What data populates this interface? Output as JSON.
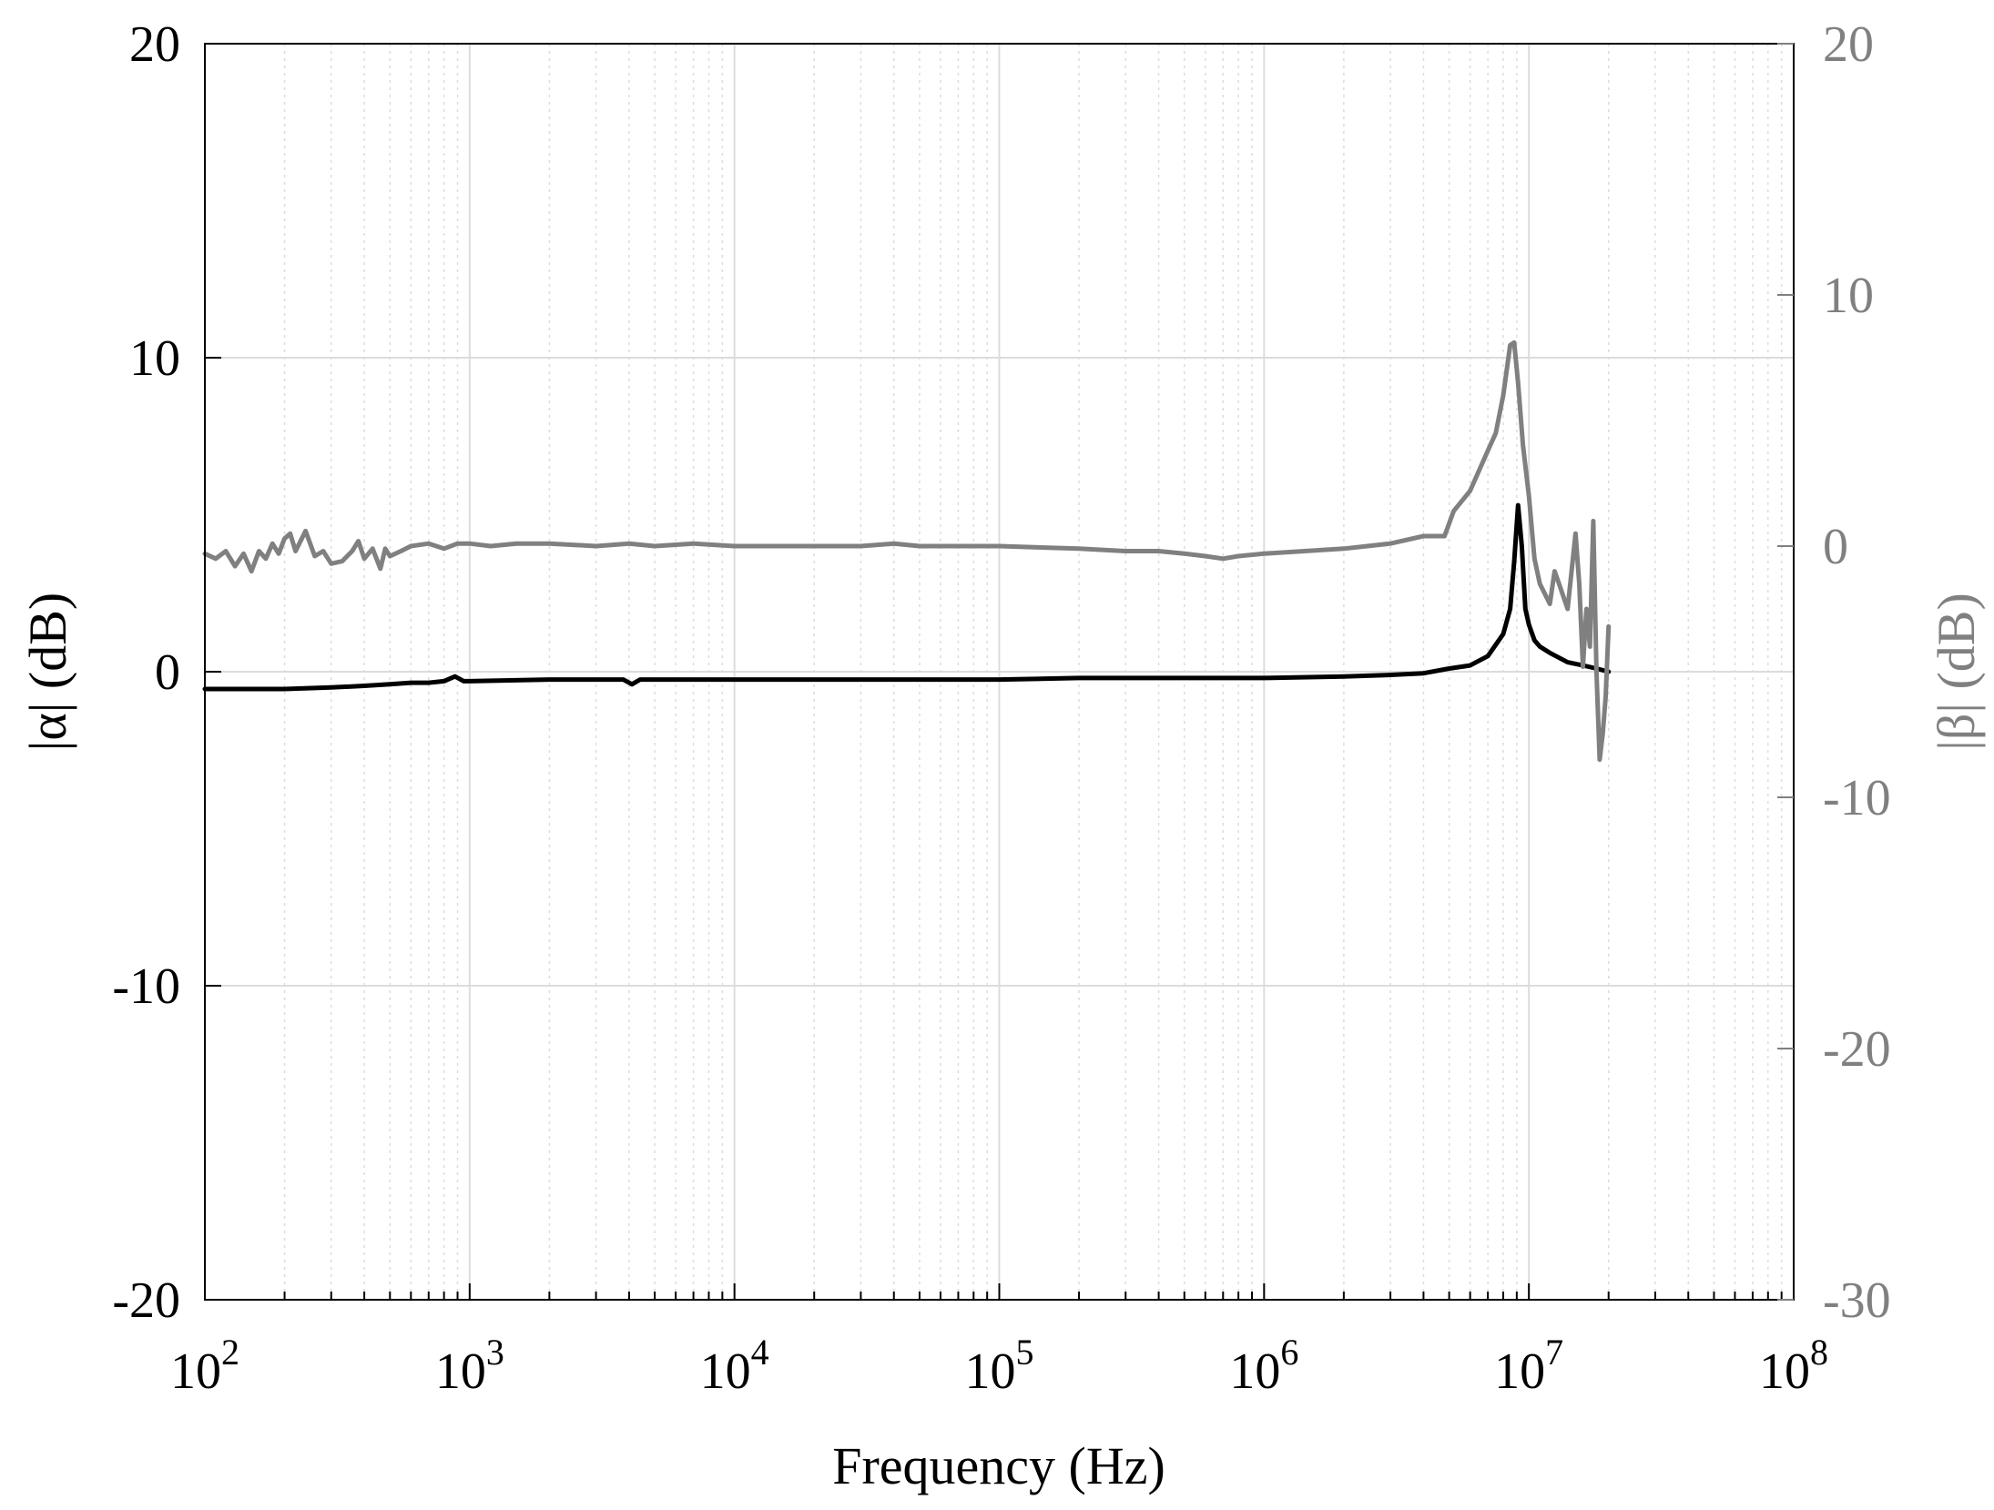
{
  "colors": {
    "alpha": "#000000",
    "beta": "#808080",
    "axis_left": "#000000",
    "axis_right": "#808080",
    "grid": "#dcdcdc"
  },
  "chart_data": {
    "type": "line",
    "x_scale": "log",
    "grid": true,
    "xlabel": "Frequency (Hz)",
    "ylabel_left": "|α| (dB)",
    "ylabel_right": "|β| (dB)",
    "xlim": [
      100,
      100000000
    ],
    "ylim_left": [
      -20,
      20
    ],
    "ylim_right": [
      -30,
      20
    ],
    "x_ticks": [
      {
        "base": "10",
        "exp": "2"
      },
      {
        "base": "10",
        "exp": "3"
      },
      {
        "base": "10",
        "exp": "4"
      },
      {
        "base": "10",
        "exp": "5"
      },
      {
        "base": "10",
        "exp": "6"
      },
      {
        "base": "10",
        "exp": "7"
      },
      {
        "base": "10",
        "exp": "8"
      }
    ],
    "y_ticks_left": [
      "-20",
      "-10",
      "0",
      "10",
      "20"
    ],
    "y_ticks_right": [
      "-30",
      "-20",
      "-10",
      "0",
      "10",
      "20"
    ],
    "series": [
      {
        "axis": "left",
        "x": [
          100,
          150,
          200,
          300,
          400,
          500,
          600,
          700,
          800,
          880,
          950,
          1000,
          2000,
          3000,
          3800,
          4100,
          4400,
          5000,
          10000,
          50000,
          100000,
          200000,
          500000,
          1000000,
          2000000,
          3000000,
          4000000,
          5000000,
          6000000,
          7000000,
          8000000,
          8500000,
          8800000,
          9100000,
          9400000,
          9700000,
          10000000,
          10500000,
          11000000,
          12000000,
          14000000,
          16000000,
          18000000,
          20000000
        ],
        "y": [
          -0.55,
          -0.55,
          -0.55,
          -0.5,
          -0.45,
          -0.4,
          -0.35,
          -0.35,
          -0.3,
          -0.15,
          -0.3,
          -0.3,
          -0.25,
          -0.25,
          -0.25,
          -0.4,
          -0.25,
          -0.25,
          -0.25,
          -0.25,
          -0.25,
          -0.2,
          -0.2,
          -0.2,
          -0.15,
          -0.1,
          -0.05,
          0.1,
          0.2,
          0.5,
          1.2,
          2.0,
          3.5,
          5.3,
          4.0,
          2.0,
          1.5,
          1.0,
          0.8,
          0.6,
          0.3,
          0.2,
          0.1,
          0.0
        ]
      },
      {
        "axis": "right",
        "x": [
          100,
          110,
          120,
          130,
          140,
          150,
          160,
          170,
          180,
          190,
          200,
          210,
          220,
          240,
          260,
          280,
          300,
          330,
          360,
          380,
          400,
          430,
          460,
          480,
          500,
          550,
          600,
          700,
          800,
          900,
          1000,
          1200,
          1500,
          2000,
          3000,
          4000,
          5000,
          7000,
          10000,
          20000,
          30000,
          40000,
          50000,
          100000,
          200000,
          300000,
          400000,
          500000,
          600000,
          700000,
          800000,
          1000000,
          2000000,
          3000000,
          4000000,
          4800000,
          5200000,
          6000000,
          7000000,
          7500000,
          8000000,
          8500000,
          8800000,
          9100000,
          9500000,
          10000000,
          10500000,
          11000000,
          12000000,
          12500000,
          13000000,
          14000000,
          15000000,
          15500000,
          16000000,
          16500000,
          17000000,
          17500000,
          18000000,
          18500000,
          19000000,
          19500000,
          20000000
        ],
        "y": [
          -0.3,
          -0.5,
          -0.2,
          -0.8,
          -0.3,
          -1.0,
          -0.2,
          -0.5,
          0.1,
          -0.3,
          0.3,
          0.5,
          -0.2,
          0.6,
          -0.4,
          -0.2,
          -0.7,
          -0.6,
          -0.2,
          0.2,
          -0.5,
          -0.1,
          -0.9,
          -0.1,
          -0.4,
          -0.2,
          0.0,
          0.1,
          -0.1,
          0.1,
          0.1,
          0.0,
          0.1,
          0.1,
          0.0,
          0.1,
          0.0,
          0.1,
          0.0,
          0.0,
          0.0,
          0.1,
          0.0,
          0.0,
          -0.1,
          -0.2,
          -0.2,
          -0.3,
          -0.4,
          -0.5,
          -0.4,
          -0.3,
          -0.1,
          0.1,
          0.4,
          0.4,
          1.4,
          2.2,
          3.8,
          4.5,
          6.0,
          8.0,
          8.1,
          6.5,
          4.0,
          2.0,
          -0.5,
          -1.5,
          -2.3,
          -1.0,
          -1.5,
          -2.5,
          0.5,
          -1.5,
          -4.8,
          -2.5,
          -4.0,
          1.0,
          -5.0,
          -8.5,
          -7.5,
          -6.0,
          -3.2
        ]
      }
    ]
  }
}
